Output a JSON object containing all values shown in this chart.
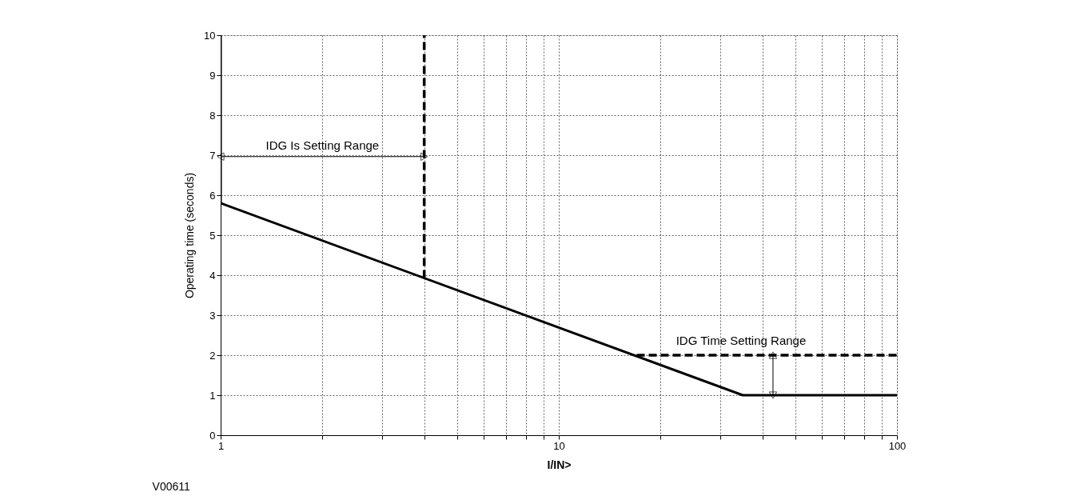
{
  "chart_data": {
    "type": "line",
    "xlabel": "I/IN>",
    "ylabel": "Operating time (seconds)",
    "log": "x",
    "xlim": [
      1,
      100
    ],
    "ylim": [
      0,
      10
    ],
    "xticks": [
      1,
      {
        "value": 2,
        "label": null
      },
      {
        "value": 3,
        "label": null
      },
      {
        "value": 4,
        "label": null
      },
      {
        "value": 5,
        "label": null
      },
      {
        "value": 6,
        "label": null
      },
      {
        "value": 7,
        "label": null
      },
      {
        "value": 8,
        "label": null
      },
      {
        "value": 9,
        "label": null
      },
      10,
      {
        "value": 20,
        "label": null
      },
      {
        "value": 30,
        "label": null
      },
      {
        "value": 40,
        "label": null
      },
      {
        "value": 50,
        "label": null
      },
      {
        "value": 60,
        "label": null
      },
      {
        "value": 70,
        "label": null
      },
      {
        "value": 80,
        "label": null
      },
      {
        "value": 90,
        "label": null
      },
      100
    ],
    "yticks": [
      0,
      1,
      2,
      3,
      4,
      5,
      6,
      7,
      8,
      9,
      10
    ],
    "grid": true,
    "marker": "none",
    "series": [
      {
        "color": "#000000",
        "x": [
          1,
          1,
          35,
          100
        ],
        "values": [
          10,
          5.8,
          1,
          1
        ],
        "line_style": "solid"
      },
      {
        "color": "#000000",
        "x": [
          4,
          4
        ],
        "values": [
          3.93,
          10
        ],
        "line_style": "dashed"
      },
      {
        "color": "#000000",
        "x": [
          17,
          100
        ],
        "values": [
          2,
          2
        ],
        "line_style": "dashed"
      }
    ],
    "annotations": [
      "IDG Is Setting Range",
      {
        "text": "IDG Time Setting Range",
        "x": 43,
        "y": 2
      },
      "V00611"
    ]
  }
}
